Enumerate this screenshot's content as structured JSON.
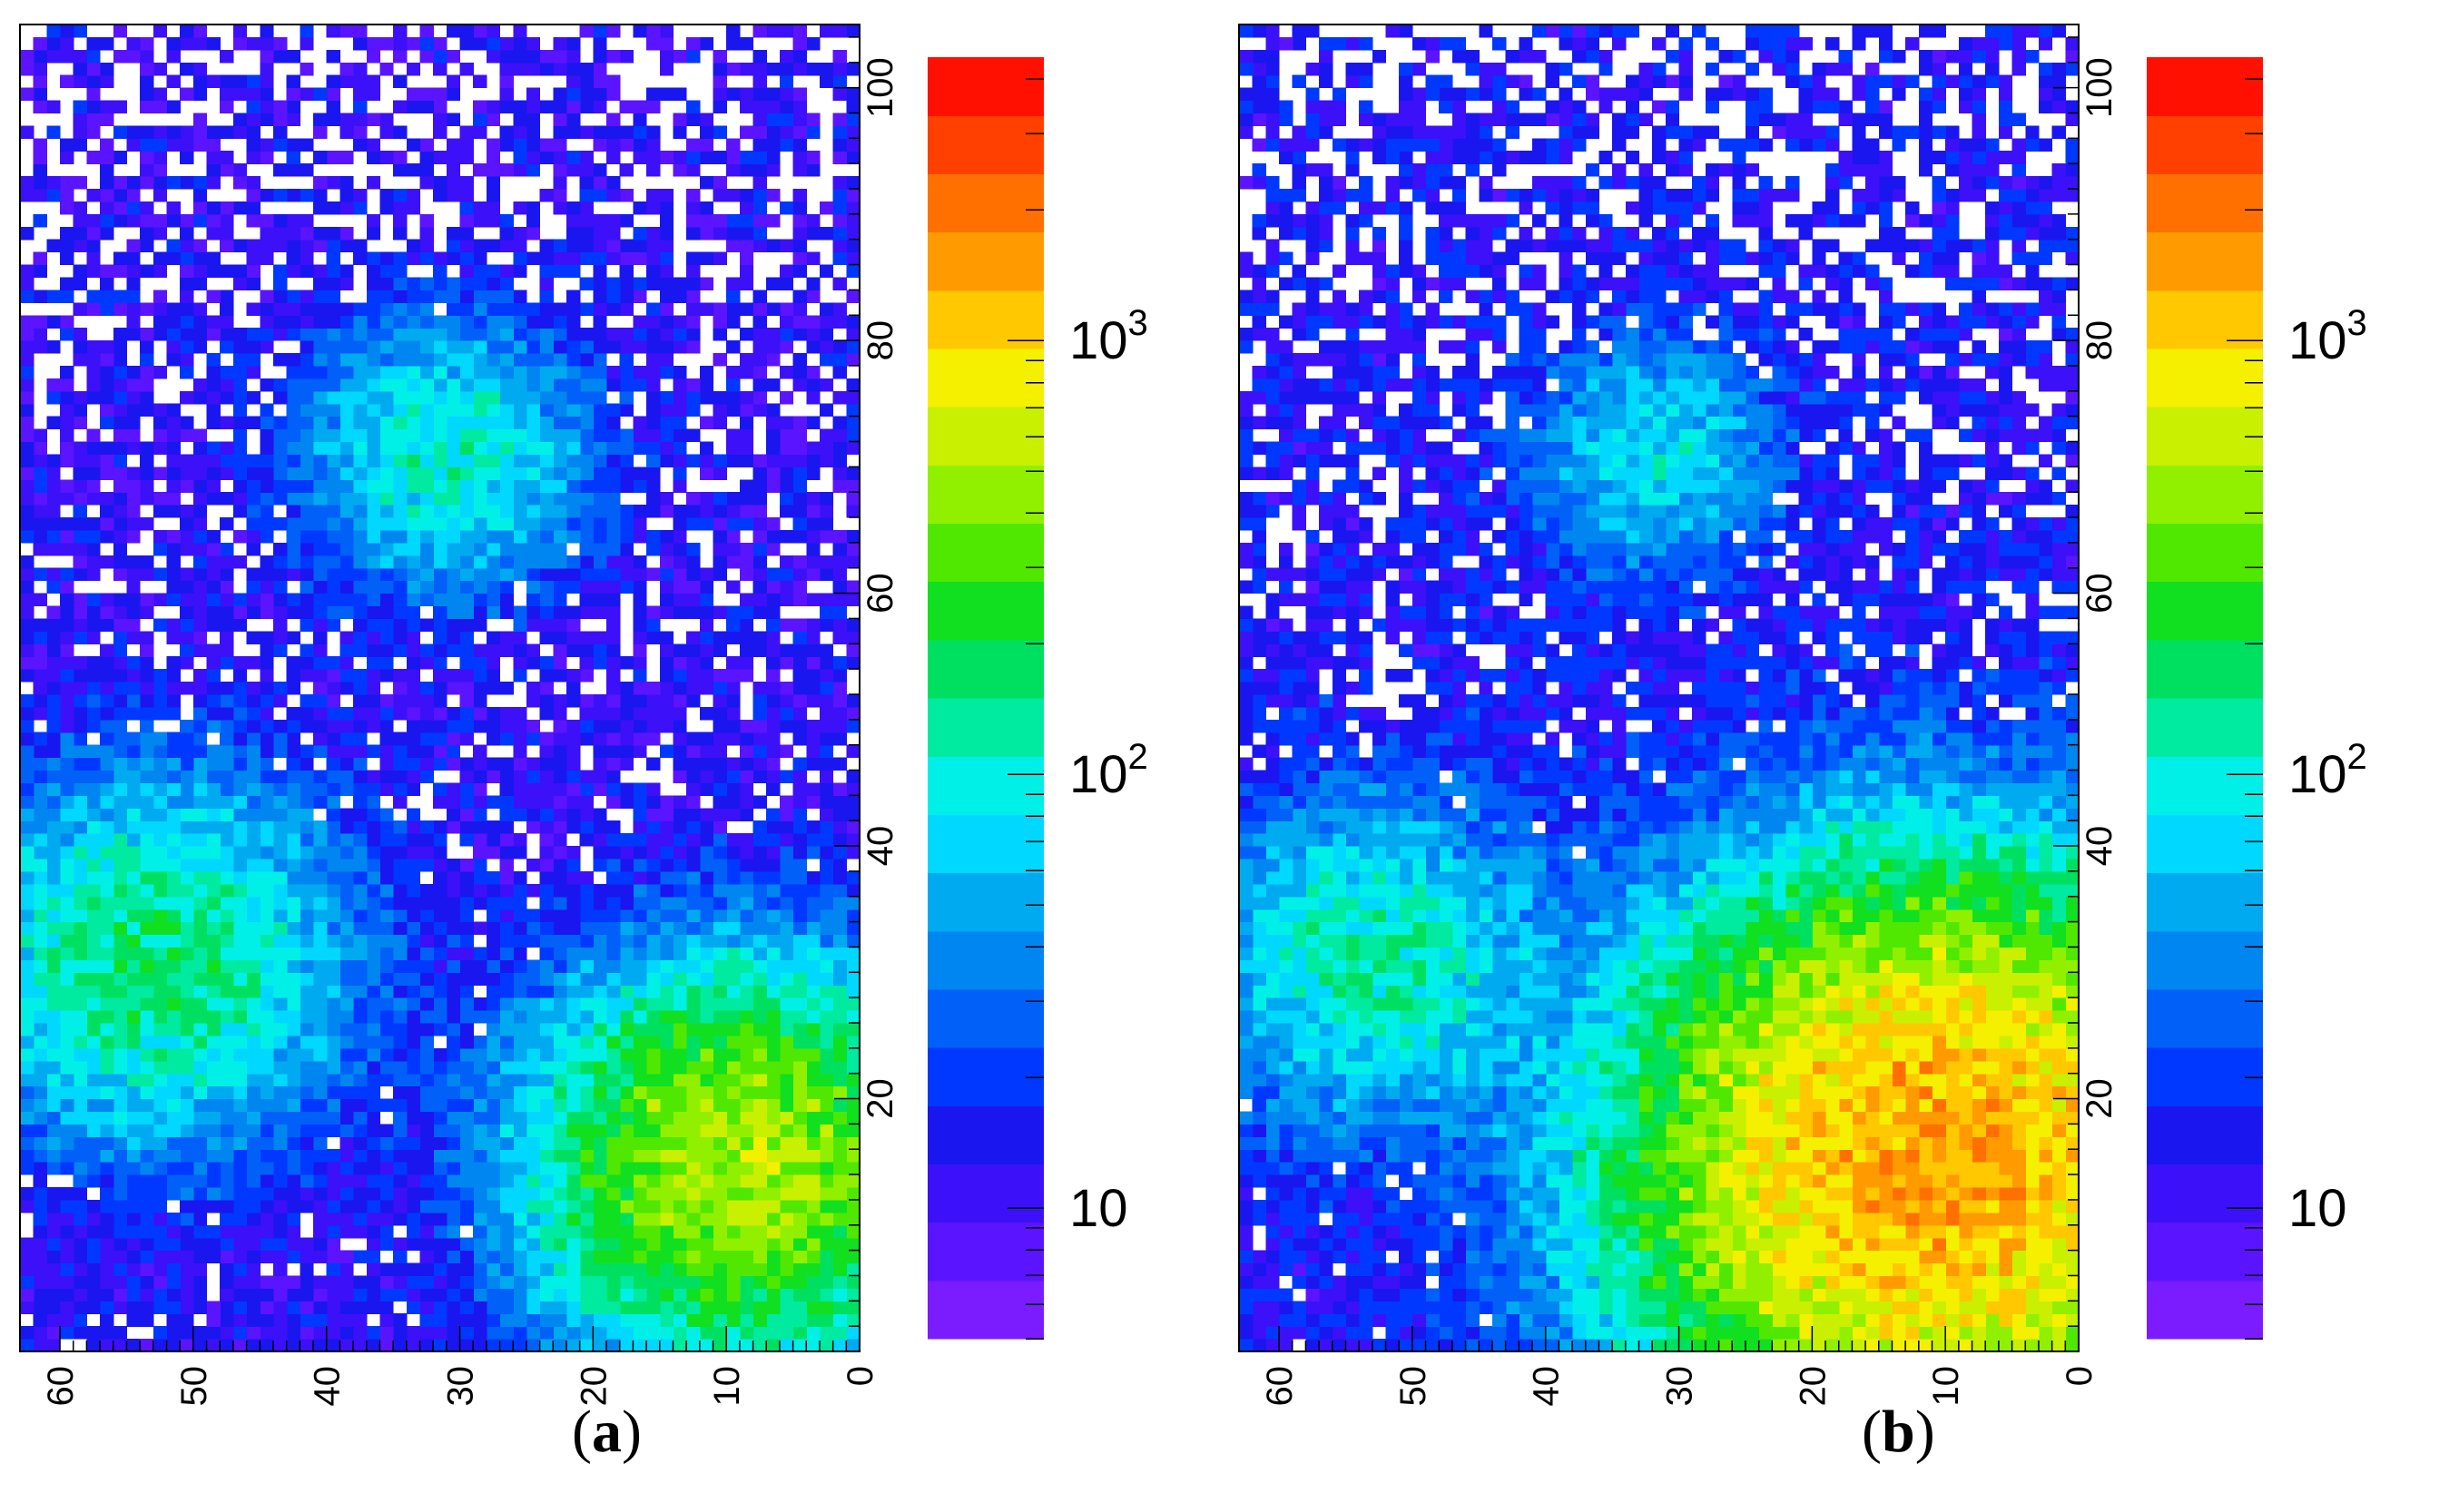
{
  "chart_data": [
    {
      "type": "heatmap",
      "panel_label": "a",
      "x_axis": {
        "range": [
          0,
          63
        ],
        "reversed": true,
        "ticks": [
          "0",
          "10",
          "20",
          "30",
          "40",
          "50",
          "60"
        ],
        "tick_label_rotation": "rotated"
      },
      "y_axis": {
        "range": [
          0,
          105
        ],
        "ticks": [
          "20",
          "40",
          "60",
          "80",
          "100"
        ],
        "position": "right",
        "tick_label_rotation": "rotated"
      },
      "z_axis": {
        "scale": "log",
        "range": [
          5,
          4500
        ],
        "ticks": [
          "10",
          "10^2",
          "10^3"
        ],
        "tick_values": [
          10,
          100,
          1000
        ]
      },
      "grid": false,
      "legend": "colorbar-right",
      "background_floor_counts": 12,
      "hotspots": [
        {
          "x": 9,
          "y": 15,
          "peak_counts": 520,
          "sigma": 8
        },
        {
          "x": 53,
          "y": 31,
          "peak_counts": 150,
          "sigma": 8
        },
        {
          "x": 31,
          "y": 71,
          "peak_counts": 95,
          "sigma": 6
        }
      ],
      "cyan_plateau": null,
      "empty_bin_fraction_top": 0.35
    },
    {
      "type": "heatmap",
      "panel_label": "b",
      "x_axis": {
        "range": [
          0,
          63
        ],
        "reversed": true,
        "ticks": [
          "0",
          "10",
          "20",
          "30",
          "40",
          "50",
          "60"
        ],
        "tick_label_rotation": "rotated"
      },
      "y_axis": {
        "range": [
          0,
          105
        ],
        "ticks": [
          "20",
          "40",
          "60",
          "80",
          "100"
        ],
        "position": "right",
        "tick_label_rotation": "rotated"
      },
      "z_axis": {
        "scale": "log",
        "range": [
          5,
          4500
        ],
        "ticks": [
          "10",
          "10^2",
          "10^3"
        ],
        "tick_values": [
          10,
          100,
          1000
        ]
      },
      "grid": false,
      "legend": "colorbar-right",
      "background_floor_counts": 14,
      "hotspots": [
        {
          "x": 11,
          "y": 15,
          "peak_counts": 1500,
          "sigma": 11
        },
        {
          "x": 53,
          "y": 31,
          "peak_counts": 110,
          "sigma": 7
        },
        {
          "x": 32,
          "y": 71,
          "peak_counts": 70,
          "sigma": 5
        }
      ],
      "cyan_plateau": {
        "x_max": 30,
        "y_max": 40,
        "counts": 55
      },
      "empty_bin_fraction_top": 0.45
    }
  ],
  "colorbar_palette": [
    "#7a1cff",
    "#5a14ff",
    "#3c10f8",
    "#1a16f0",
    "#0038ff",
    "#0060f8",
    "#0086f0",
    "#00aaf0",
    "#00d8ff",
    "#00f0e8",
    "#00eaa0",
    "#00e060",
    "#10e020",
    "#50e800",
    "#90f000",
    "#c8f000",
    "#f4f000",
    "#ffc800",
    "#ff9a00",
    "#ff7000",
    "#ff4000",
    "#ff1000"
  ],
  "captions": {
    "a": "a",
    "b": "b"
  },
  "caption_parens": {
    "open": "(",
    "close": ")"
  }
}
